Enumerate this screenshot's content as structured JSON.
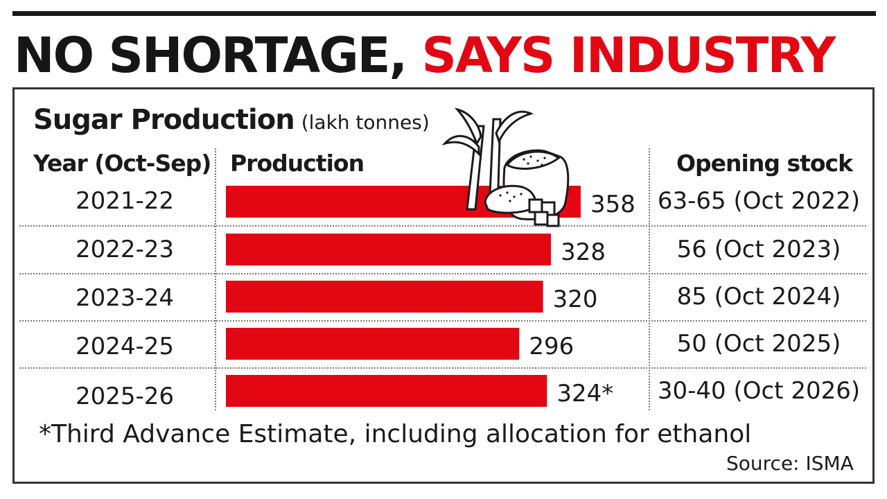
{
  "headline": {
    "part1": "NO SHORTAGE, ",
    "part2": "SAYS INDUSTRY"
  },
  "chart_data": {
    "type": "bar",
    "orientation": "horizontal",
    "title": "Sugar Production",
    "unit": "(lakh tonnes)",
    "columns": {
      "year": "Year (Oct-Sep)",
      "production": "Production",
      "stock": "Opening stock"
    },
    "categories": [
      "2021-22",
      "2022-23",
      "2023-24",
      "2024-25",
      "2025-26"
    ],
    "values": [
      358,
      328,
      320,
      296,
      324
    ],
    "value_labels": [
      "358",
      "328",
      "320",
      "296",
      "324*"
    ],
    "opening_stock": [
      "63-65 (Oct 2022)",
      "56 (Oct 2023)",
      "85 (Oct 2024)",
      "50 (Oct 2025)",
      "30-40 (Oct 2026)"
    ],
    "bar_color": "#e30613",
    "grid": false,
    "legend": "none"
  },
  "footnote": "*Third Advance Estimate, including allocation for ethanol",
  "source": "Source: ISMA"
}
